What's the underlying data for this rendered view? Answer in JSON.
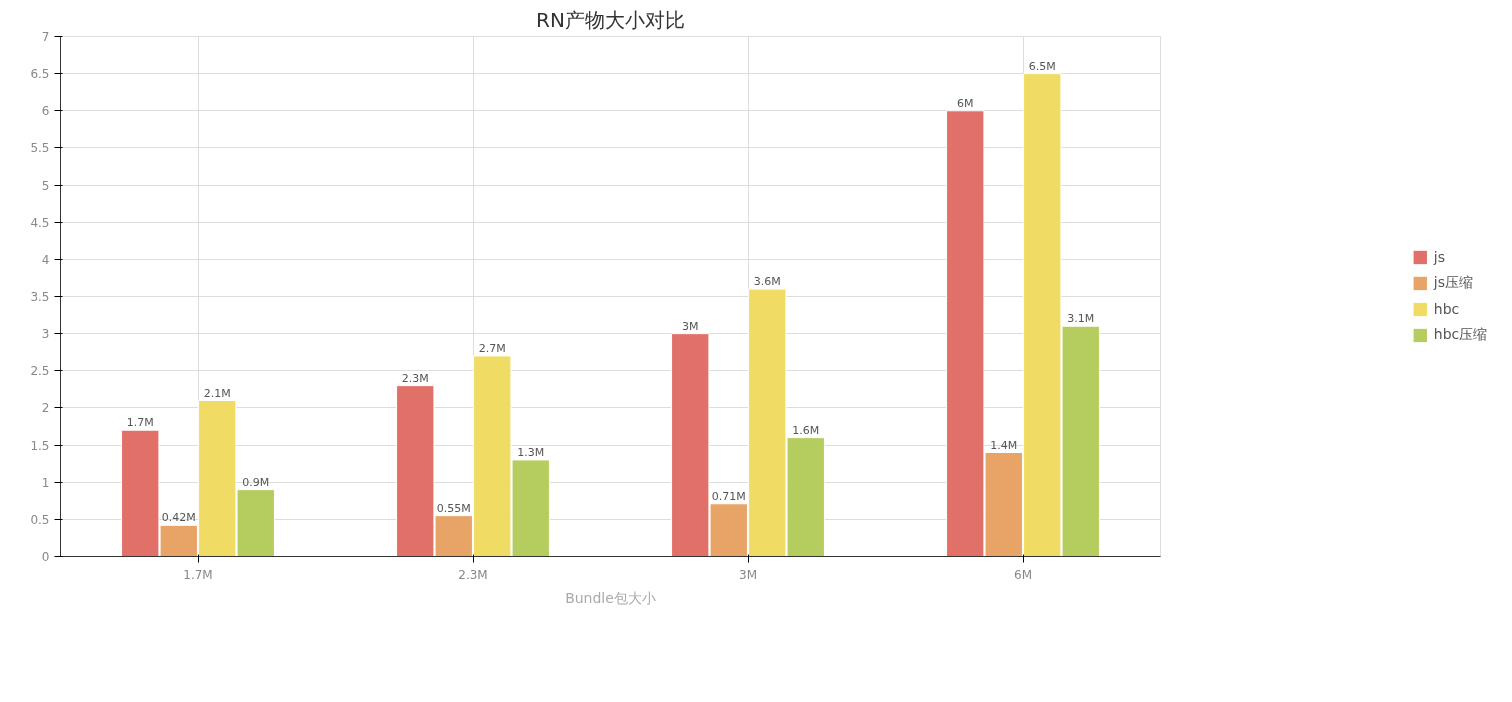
{
  "chart_data": {
    "type": "bar",
    "title": "RN产物大小对比",
    "xlabel": "Bundle包大小",
    "categories": [
      "1.7M",
      "2.3M",
      "3M",
      "6M"
    ],
    "series": [
      {
        "name": "js",
        "color": "#e07068",
        "values": [
          1.7,
          2.3,
          3,
          6
        ],
        "value_labels": [
          "1.7M",
          "2.3M",
          "3M",
          "6M"
        ]
      },
      {
        "name": "js压缩",
        "color": "#e8a466",
        "values": [
          0.42,
          0.55,
          0.71,
          1.4
        ],
        "value_labels": [
          "0.42M",
          "0.55M",
          "0.71M",
          "1.4M"
        ]
      },
      {
        "name": "hbc",
        "color": "#f0dc64",
        "values": [
          2.1,
          2.7,
          3.6,
          6.5
        ],
        "value_labels": [
          "2.1M",
          "2.7M",
          "3.6M",
          "6.5M"
        ]
      },
      {
        "name": "hbc压缩",
        "color": "#b5cc5e",
        "values": [
          0.9,
          1.3,
          1.6,
          3.1
        ],
        "value_labels": [
          "0.9M",
          "1.3M",
          "1.6M",
          "3.1M"
        ]
      }
    ],
    "ylim": [
      0,
      7
    ],
    "yticks": [
      0,
      0.5,
      1,
      1.5,
      2,
      2.5,
      3,
      3.5,
      4,
      4.5,
      5,
      5.5,
      6,
      6.5,
      7
    ],
    "grid": true,
    "legend": "right"
  }
}
